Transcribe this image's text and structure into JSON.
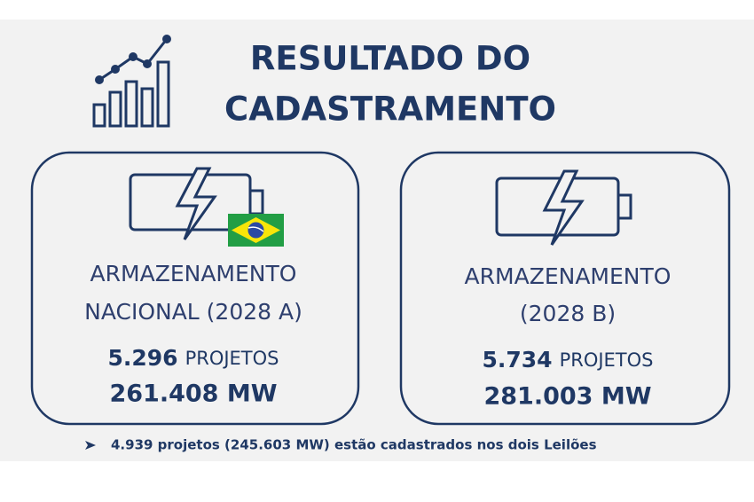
{
  "title": [
    "RESULTADO DO",
    "CADASTRAMENTO"
  ],
  "cards": [
    {
      "label": [
        "ARMAZENAMENTO",
        "NACIONAL (2028 A)"
      ],
      "projects": "5.296",
      "projects_unit": "PROJETOS",
      "capacity": "261.408 MW"
    },
    {
      "label": [
        "ARMAZENAMENTO",
        "(2028 B)"
      ],
      "projects": "5.734",
      "projects_unit": "PROJETOS",
      "capacity": "281.003 MW"
    }
  ],
  "note": "4.939 projetos (245.603 MW) estão cadastrados nos dois Leilões"
}
